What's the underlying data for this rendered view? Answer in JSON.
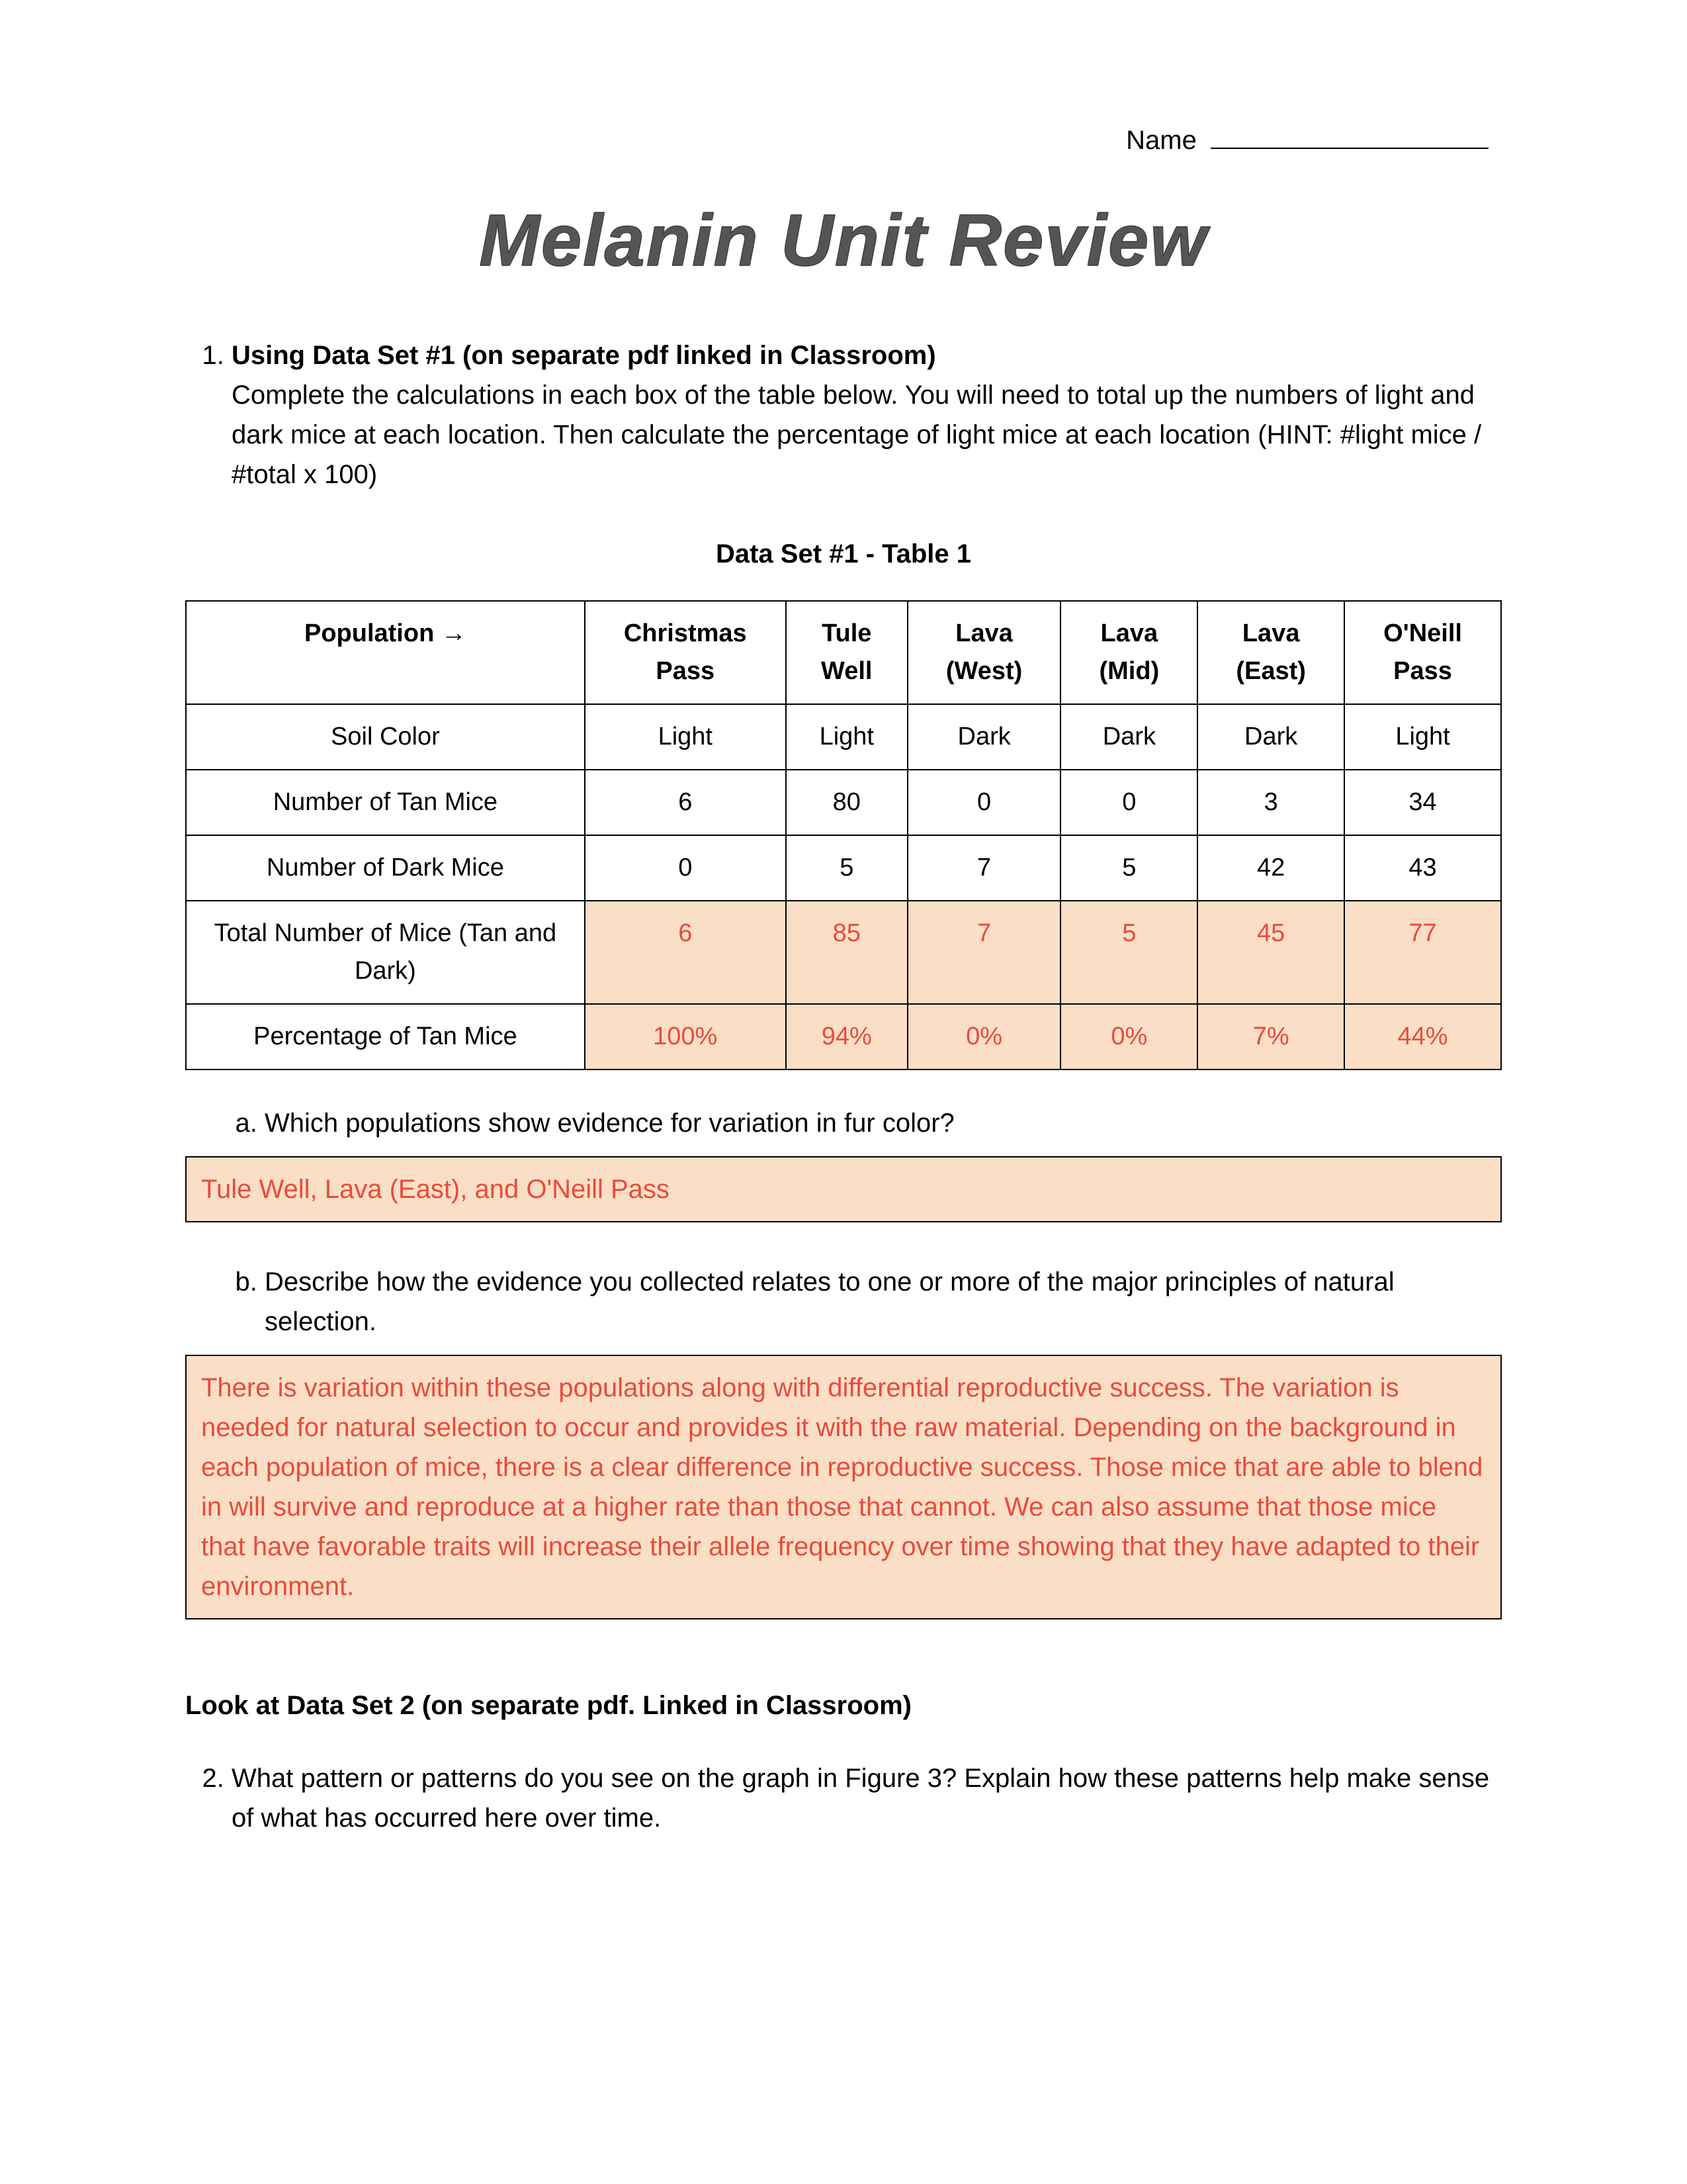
{
  "header": {
    "name_label": "Name"
  },
  "title": "Melanin Unit Review",
  "q1": {
    "number": "1.",
    "heading": "Using Data Set #1 (on separate pdf linked in Classroom)",
    "instructions": "Complete the calculations in each box of the table below.  You will need to total up the numbers of light and dark mice at each location.  Then calculate the percentage of light mice at each location (HINT: #light mice / #total x 100)"
  },
  "table1": {
    "title": "Data Set #1 - Table 1",
    "header_row_label": "Population →",
    "columns": [
      "Christmas Pass",
      "Tule Well",
      "Lava (West)",
      "Lava (Mid)",
      "Lava (East)",
      "O'Neill Pass"
    ],
    "rows": [
      {
        "label": "Soil Color",
        "cells": [
          "Light",
          "Light",
          "Dark",
          "Dark",
          "Dark",
          "Light"
        ],
        "highlight": false
      },
      {
        "label": "Number of Tan Mice",
        "cells": [
          "6",
          "80",
          "0",
          "0",
          "3",
          "34"
        ],
        "highlight": false
      },
      {
        "label": "Number of Dark Mice",
        "cells": [
          "0",
          "5",
          "7",
          "5",
          "42",
          "43"
        ],
        "highlight": false
      },
      {
        "label": "Total Number of Mice (Tan and Dark)",
        "cells": [
          "6",
          "85",
          "7",
          "5",
          "45",
          "77"
        ],
        "highlight": true
      },
      {
        "label": "Percentage of Tan Mice",
        "cells": [
          "100%",
          "94%",
          "0%",
          "0%",
          "7%",
          "44%"
        ],
        "highlight": true
      }
    ]
  },
  "q1a": {
    "letter": "a.",
    "question": "Which populations show evidence for variation in fur color?",
    "answer": "Tule Well, Lava (East), and O'Neill Pass"
  },
  "q1b": {
    "letter": "b.",
    "question": "Describe how the evidence you collected relates to one or more of the major principles of natural selection.",
    "answer": "There is variation within these populations along with differential reproductive success.  The variation is needed for natural selection to occur and provides it with the raw material.  Depending on the background in each population of mice, there is a clear difference in reproductive success.  Those mice that are able to blend in will survive and reproduce at a higher rate than those that cannot.  We can also assume that those mice that have favorable traits will increase their allele frequency over time showing that they have adapted to their environment."
  },
  "section2_head": "Look at Data Set 2 (on separate pdf. Linked in Classroom)",
  "q2": {
    "number": "2.",
    "text": "What pattern or patterns do you see on the graph in Figure 3?  Explain how these patterns help make sense of what has occurred here over time."
  },
  "colors": {
    "highlight_bg": "#fadec6",
    "highlight_text": "#e74c3c",
    "border": "#000000",
    "page_bg": "#ffffff"
  }
}
